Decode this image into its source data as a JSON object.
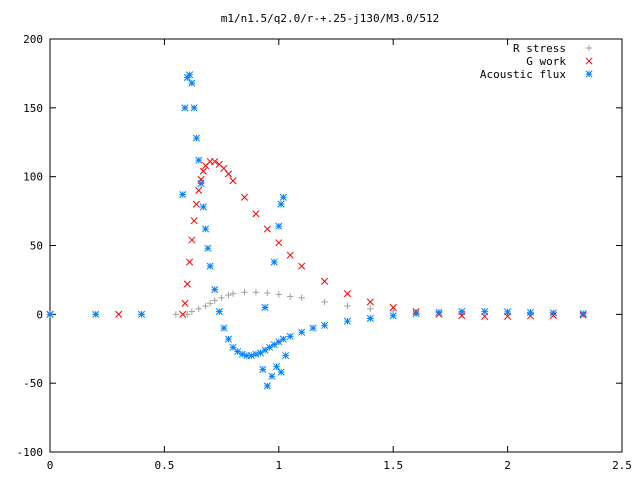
{
  "chart_data": {
    "type": "scatter",
    "title": "m1/n1.5/q2.0/r-+.25-j130/M3.0/512",
    "xlabel": "",
    "ylabel": "",
    "xlim": [
      0,
      2.5
    ],
    "ylim": [
      -100,
      200
    ],
    "xticks": [
      "0",
      "0.5",
      "1",
      "1.5",
      "2",
      "2.5"
    ],
    "yticks": [
      "-100",
      "-50",
      "0",
      "50",
      "100",
      "150",
      "200"
    ],
    "grid": false,
    "legend_position": "top-right",
    "series": [
      {
        "name": "R stress",
        "color": "#a0a0a0",
        "marker": "plus",
        "x": [
          0.0,
          0.2,
          0.4,
          0.55,
          0.6,
          0.62,
          0.65,
          0.68,
          0.7,
          0.72,
          0.75,
          0.78,
          0.8,
          0.85,
          0.9,
          0.95,
          1.0,
          1.05,
          1.1,
          1.2,
          1.3,
          1.4,
          1.5,
          1.6,
          1.8,
          2.0,
          2.2,
          2.33
        ],
        "y": [
          0,
          0,
          0,
          0,
          0,
          2,
          4,
          6,
          8,
          10,
          12,
          14,
          15,
          16,
          16,
          15.5,
          14.5,
          13,
          12,
          9,
          6,
          4,
          2.5,
          1.5,
          0.8,
          0.4,
          0.2,
          0.1
        ]
      },
      {
        "name": "G work",
        "color": "#ff0000",
        "marker": "cross",
        "x": [
          0.0,
          0.3,
          0.58,
          0.59,
          0.6,
          0.61,
          0.62,
          0.63,
          0.64,
          0.65,
          0.66,
          0.67,
          0.68,
          0.7,
          0.72,
          0.74,
          0.76,
          0.78,
          0.8,
          0.85,
          0.9,
          0.95,
          1.0,
          1.05,
          1.1,
          1.2,
          1.3,
          1.4,
          1.5,
          1.6,
          1.7,
          1.8,
          1.9,
          2.0,
          2.1,
          2.2,
          2.33
        ],
        "y": [
          0,
          0,
          0,
          8,
          22,
          38,
          54,
          68,
          80,
          90,
          98,
          104,
          108,
          111,
          111,
          109,
          106,
          102,
          97,
          85,
          73,
          62,
          52,
          43,
          35,
          24,
          15,
          9,
          5,
          2,
          0,
          -1,
          -1.5,
          -1.5,
          -1.2,
          -0.8,
          -0.5
        ]
      },
      {
        "name": "Acoustic flux",
        "color": "#0080ff",
        "marker": "star",
        "x": [
          0.0,
          0.2,
          0.4,
          0.58,
          0.59,
          0.6,
          0.61,
          0.62,
          0.63,
          0.64,
          0.65,
          0.66,
          0.67,
          0.68,
          0.69,
          0.7,
          0.72,
          0.74,
          0.76,
          0.78,
          0.8,
          0.82,
          0.84,
          0.86,
          0.88,
          0.9,
          0.92,
          0.94,
          0.96,
          0.98,
          1.0,
          1.02,
          1.05,
          1.1,
          1.15,
          1.2,
          1.3,
          1.4,
          1.5,
          1.6,
          1.7,
          1.8,
          1.9,
          2.0,
          2.1,
          2.2,
          2.33,
          0.93,
          0.95,
          0.97,
          0.99,
          1.01,
          1.03,
          0.98,
          1.0,
          1.01,
          1.02,
          0.94
        ],
        "y": [
          0,
          0,
          0,
          87,
          150,
          172,
          174,
          168,
          150,
          128,
          112,
          95,
          78,
          62,
          48,
          35,
          18,
          2,
          -10,
          -18,
          -24,
          -27,
          -29,
          -30,
          -30,
          -29,
          -28,
          -26,
          -24,
          -22,
          -20,
          -18,
          -16,
          -13,
          -10,
          -8,
          -5,
          -3,
          -1,
          0.5,
          1.5,
          2,
          2,
          1.8,
          1.5,
          1,
          0.5,
          -40,
          -52,
          -45,
          -38,
          -42,
          -30,
          38,
          64,
          80,
          85,
          5
        ]
      }
    ]
  }
}
